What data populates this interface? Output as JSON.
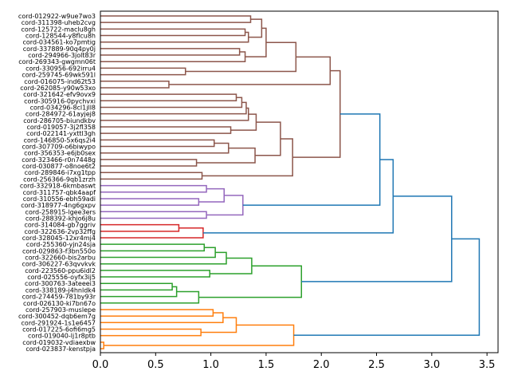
{
  "chart_data": {
    "type": "dendrogram",
    "orientation": "right",
    "xlim": [
      0,
      3.6
    ],
    "xticks": [
      0.0,
      0.5,
      1.0,
      1.5,
      2.0,
      2.5,
      3.0,
      3.5
    ],
    "xtick_labels": [
      "0.0",
      "0.5",
      "1.0",
      "1.5",
      "2.0",
      "2.5",
      "3.0",
      "3.5"
    ],
    "title": "",
    "xlabel": "",
    "ylabel": "",
    "colors": {
      "brown": "#8c564b",
      "purple": "#9467bd",
      "red": "#d62728",
      "green": "#2ca02c",
      "orange": "#ff7f0e",
      "above_threshold": "#1f77b4"
    },
    "leaves": [
      "cord-012922-w9ue7wo3",
      "cord-311398-uheb2cvg",
      "cord-125722-maclu8gh",
      "cord-128544-y8flcu8h",
      "cord-034561-ko7pmtig",
      "cord-337889-90q4py0j",
      "cord-294966-3jolt83r",
      "cord-269343-gwgmn06t",
      "cord-330956-692irru4",
      "cord-259745-69wk591l",
      "cord-016075-ind62t53",
      "cord-262085-y90w53xo",
      "cord-321642-efv9ovx9",
      "cord-305916-0pychvxi",
      "cord-034296-8cl1jll8",
      "cord-284972-61ayjej8",
      "cord-286705-biundkbv",
      "cord-019057-3j2fl358",
      "cord-022141-yxttl3gh",
      "cord-146850-5x6qs2i4",
      "cord-307709-o6biwypo",
      "cord-356353-e6jb0sex",
      "cord-323466-r0n7448g",
      "cord-030877-o8noe6t2",
      "cord-289846-i7xg1tpp",
      "cord-256366-9qb1zrzh",
      "cord-332918-6kmbaswt",
      "cord-311757-qbk4aapf",
      "cord-310556-ebh59adi",
      "cord-318977-4ng6gxpv",
      "cord-258915-lgee3ers",
      "cord-288392-khjo6j8u",
      "cord-314084-gb7ggriv",
      "cord-322636-2vp32ffg",
      "cord-328045-12xr4mj4",
      "cord-255360-yjn24sja",
      "cord-029863-f3bn550o",
      "cord-322660-bis2arbu",
      "cord-306227-63qvvkvk",
      "cord-223560-ppu6idl2",
      "cord-025556-oyfx3ij5",
      "cord-300763-3ateeei3",
      "cord-338189-j4hnldk4",
      "cord-274459-781by93r",
      "cord-026130-ki7bn67o",
      "cord-257903-muslepe",
      "cord-300452-dqb6em7g",
      "cord-291924-1s1e6457",
      "cord-017225-6ofi6mg5",
      "cord-019040-lj1r8ptb",
      "cord-019032-vdiaexbw",
      "cord-023837-kenstpja"
    ],
    "merges": [
      {
        "id": "b1",
        "a": "L0",
        "b": "L1",
        "h": 1.36,
        "c": "brown"
      },
      {
        "id": "b2",
        "a": "L2",
        "b": "L3",
        "h": 1.31,
        "c": "brown"
      },
      {
        "id": "b3",
        "a": "b2",
        "b": "L4",
        "h": 1.34,
        "c": "brown"
      },
      {
        "id": "b4",
        "a": "b1",
        "b": "b3",
        "h": 1.46,
        "c": "brown"
      },
      {
        "id": "b5",
        "a": "L5",
        "b": "L6",
        "h": 1.26,
        "c": "brown"
      },
      {
        "id": "b6",
        "a": "b5",
        "b": "L7",
        "h": 1.31,
        "c": "brown"
      },
      {
        "id": "b7",
        "a": "b4",
        "b": "b6",
        "h": 1.5,
        "c": "brown"
      },
      {
        "id": "b8",
        "a": "L8",
        "b": "L9",
        "h": 0.77,
        "c": "brown"
      },
      {
        "id": "b9",
        "a": "b7",
        "b": "b8",
        "h": 1.77,
        "c": "brown"
      },
      {
        "id": "b10",
        "a": "L10",
        "b": "L11",
        "h": 0.62,
        "c": "brown"
      },
      {
        "id": "b11",
        "a": "b9",
        "b": "b10",
        "h": 2.08,
        "c": "brown"
      },
      {
        "id": "b12",
        "a": "L12",
        "b": "L13",
        "h": 1.23,
        "c": "brown"
      },
      {
        "id": "b13",
        "a": "b12",
        "b": "L14",
        "h": 1.28,
        "c": "brown"
      },
      {
        "id": "b14",
        "a": "b13",
        "b": "L15",
        "h": 1.32,
        "c": "brown"
      },
      {
        "id": "b15",
        "a": "b14",
        "b": "L16",
        "h": 1.34,
        "c": "brown"
      },
      {
        "id": "b16",
        "a": "L17",
        "b": "L18",
        "h": 1.18,
        "c": "brown"
      },
      {
        "id": "b17",
        "a": "b15",
        "b": "b16",
        "h": 1.41,
        "c": "brown"
      },
      {
        "id": "b18",
        "a": "L19",
        "b": "L20",
        "h": 1.03,
        "c": "brown"
      },
      {
        "id": "b19",
        "a": "b18",
        "b": "L21",
        "h": 1.16,
        "c": "brown"
      },
      {
        "id": "b20",
        "a": "L22",
        "b": "L23",
        "h": 0.87,
        "c": "brown"
      },
      {
        "id": "b21",
        "a": "b19",
        "b": "b20",
        "h": 1.4,
        "c": "brown"
      },
      {
        "id": "b22",
        "a": "b17",
        "b": "b21",
        "h": 1.63,
        "c": "brown"
      },
      {
        "id": "b23",
        "a": "L24",
        "b": "L25",
        "h": 0.92,
        "c": "brown"
      },
      {
        "id": "b24",
        "a": "b22",
        "b": "b23",
        "h": 1.74,
        "c": "brown"
      },
      {
        "id": "b25",
        "a": "b11",
        "b": "b24",
        "h": 2.17,
        "c": "brown"
      },
      {
        "id": "p1",
        "a": "L26",
        "b": "L27",
        "h": 0.96,
        "c": "purple"
      },
      {
        "id": "p2",
        "a": "L28",
        "b": "L29",
        "h": 0.89,
        "c": "purple"
      },
      {
        "id": "p3",
        "a": "p1",
        "b": "p2",
        "h": 1.12,
        "c": "purple"
      },
      {
        "id": "p4",
        "a": "L30",
        "b": "L31",
        "h": 0.96,
        "c": "purple"
      },
      {
        "id": "p5",
        "a": "p3",
        "b": "p4",
        "h": 1.29,
        "c": "purple"
      },
      {
        "id": "r1",
        "a": "L32",
        "b": "L33",
        "h": 0.71,
        "c": "red"
      },
      {
        "id": "r2",
        "a": "r1",
        "b": "L34",
        "h": 0.93,
        "c": "red"
      },
      {
        "id": "g1",
        "a": "L35",
        "b": "L36",
        "h": 0.94,
        "c": "green"
      },
      {
        "id": "g2",
        "a": "g1",
        "b": "L37",
        "h": 1.04,
        "c": "green"
      },
      {
        "id": "g3",
        "a": "g2",
        "b": "L38",
        "h": 1.14,
        "c": "green"
      },
      {
        "id": "g4",
        "a": "L39",
        "b": "L40",
        "h": 0.99,
        "c": "green"
      },
      {
        "id": "g5",
        "a": "g3",
        "b": "g4",
        "h": 1.37,
        "c": "green"
      },
      {
        "id": "g6",
        "a": "L41",
        "b": "L42",
        "h": 0.65,
        "c": "green"
      },
      {
        "id": "g7",
        "a": "g6",
        "b": "L43",
        "h": 0.69,
        "c": "green"
      },
      {
        "id": "g8",
        "a": "g7",
        "b": "L44",
        "h": 0.89,
        "c": "green"
      },
      {
        "id": "g9",
        "a": "g5",
        "b": "g8",
        "h": 1.82,
        "c": "green"
      },
      {
        "id": "o1",
        "a": "L45",
        "b": "L46",
        "h": 1.02,
        "c": "orange"
      },
      {
        "id": "o2",
        "a": "o1",
        "b": "L47",
        "h": 1.11,
        "c": "orange"
      },
      {
        "id": "o3",
        "a": "L48",
        "b": "L49",
        "h": 0.91,
        "c": "orange"
      },
      {
        "id": "o4",
        "a": "o2",
        "b": "o3",
        "h": 1.23,
        "c": "orange"
      },
      {
        "id": "o5",
        "a": "L50",
        "b": "L51",
        "h": 0.03,
        "c": "orange"
      },
      {
        "id": "o6",
        "a": "o4",
        "b": "o5",
        "h": 1.75,
        "c": "orange"
      },
      {
        "id": "t1",
        "a": "b25",
        "b": "p5",
        "h": 2.53,
        "c": "above_threshold"
      },
      {
        "id": "t2",
        "a": "t1",
        "b": "r2",
        "h": 2.65,
        "c": "above_threshold"
      },
      {
        "id": "t3",
        "a": "t2",
        "b": "g9",
        "h": 3.18,
        "c": "above_threshold"
      },
      {
        "id": "t4",
        "a": "t3",
        "b": "o6",
        "h": 3.43,
        "c": "above_threshold"
      }
    ]
  }
}
